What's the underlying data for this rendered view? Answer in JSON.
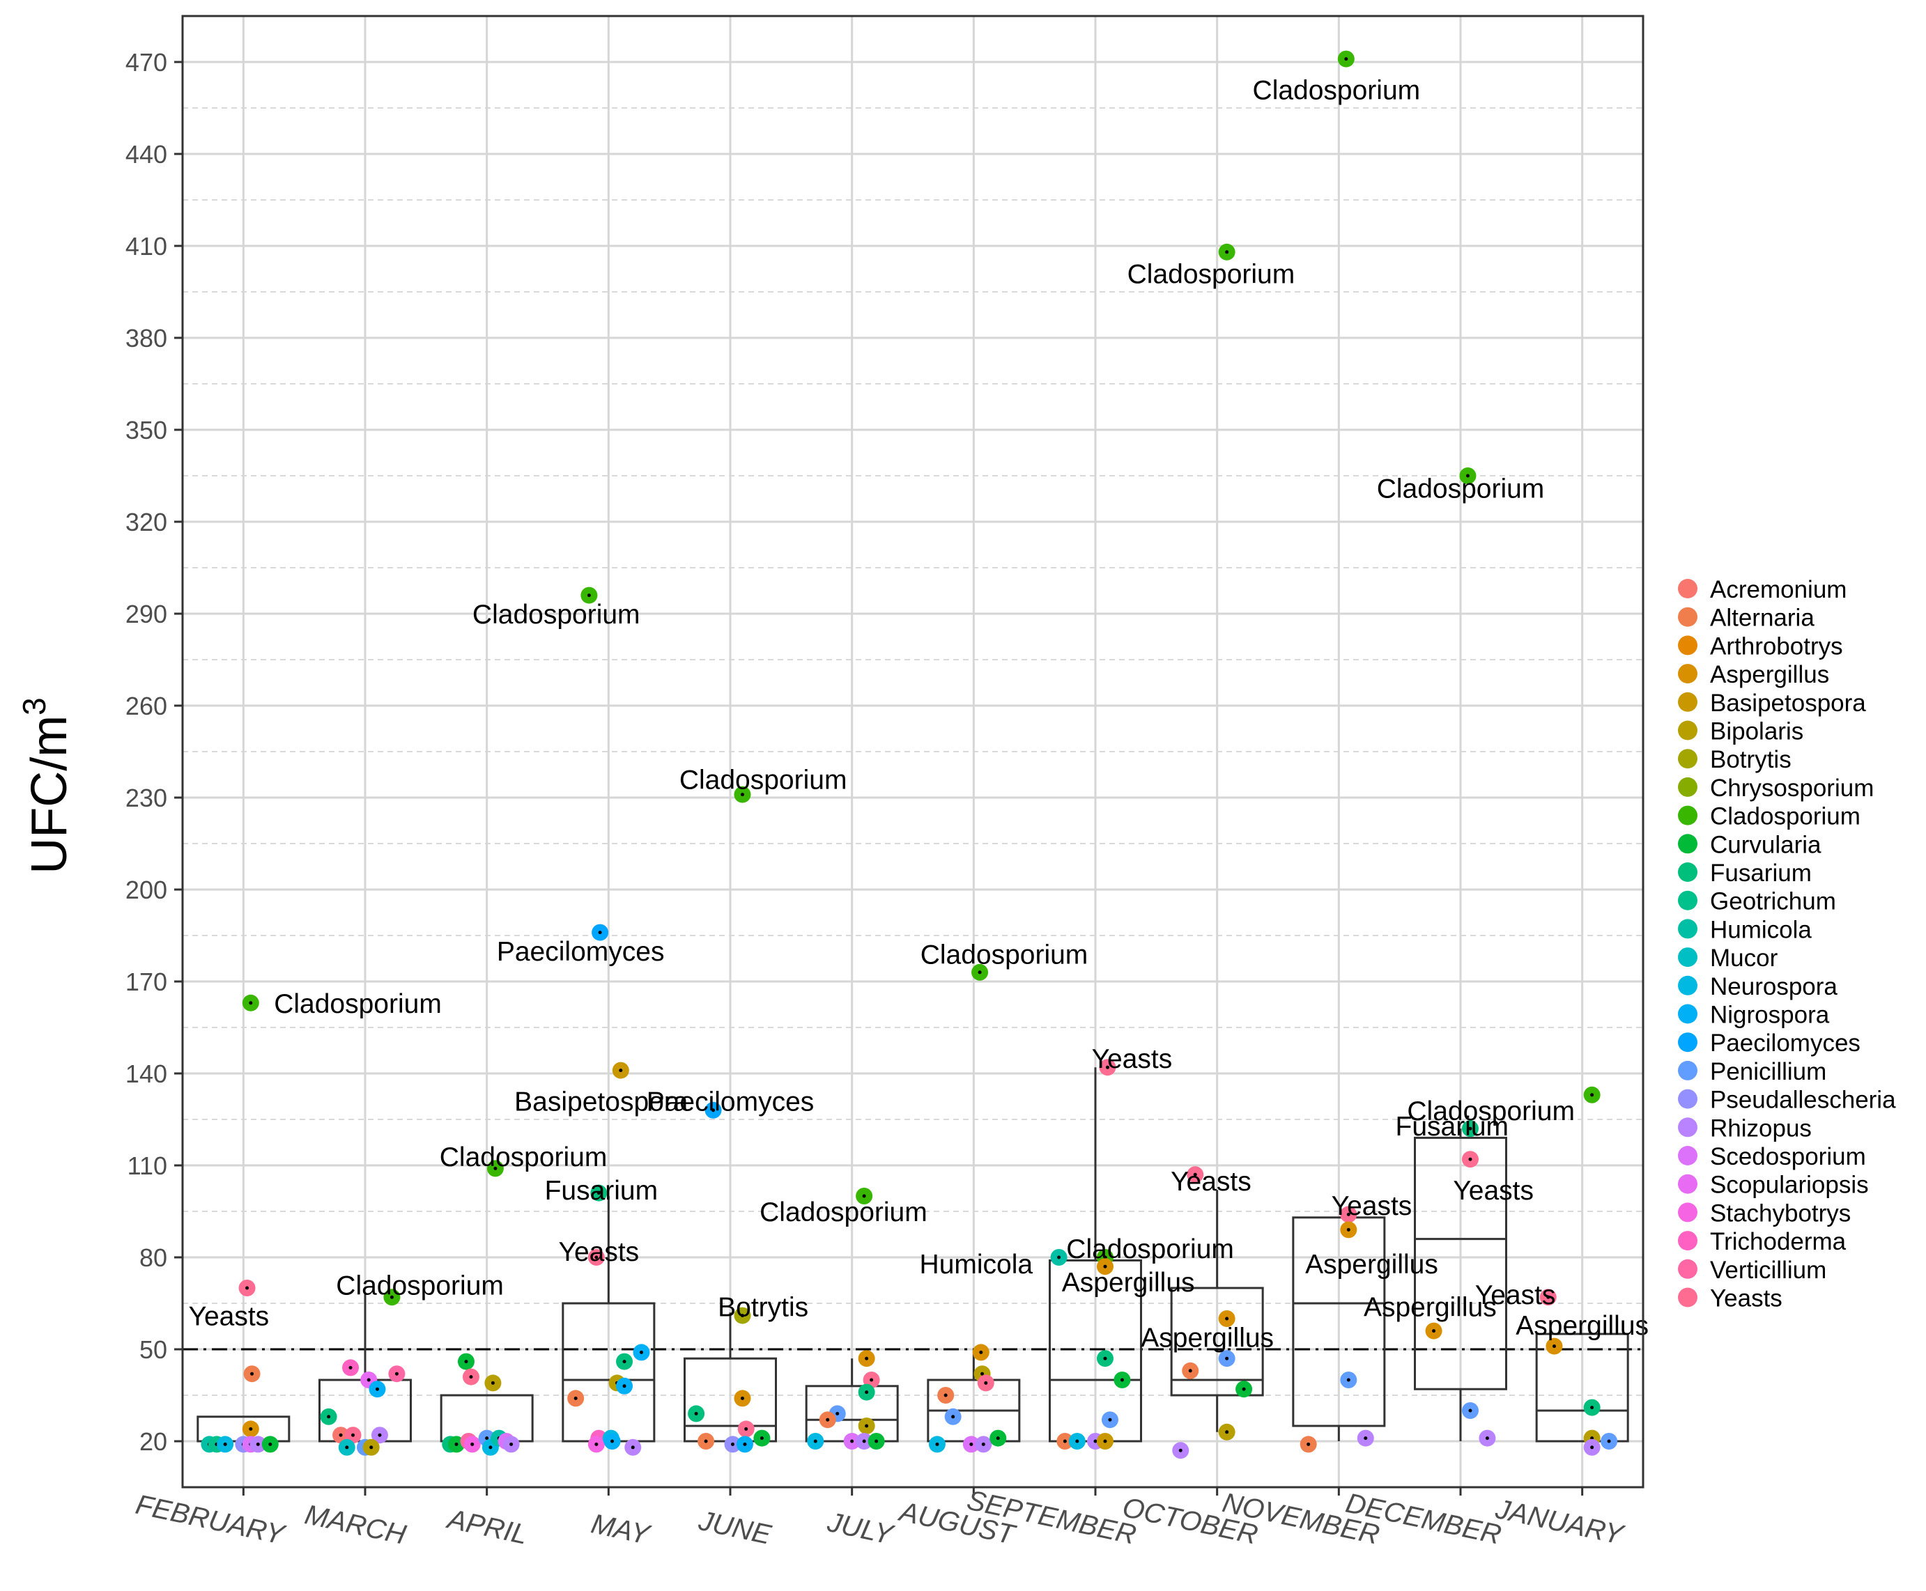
{
  "chart_data": {
    "type": "scatter",
    "title": "",
    "xlabel": "",
    "ylabel": "UFC/m",
    "ylabel_sup": "3",
    "ylim": [
      5,
      485
    ],
    "yticks": [
      20,
      50,
      80,
      110,
      140,
      170,
      200,
      230,
      260,
      290,
      320,
      350,
      380,
      410,
      440,
      470
    ],
    "reference_line": 50,
    "categories": [
      "FEBRUARY",
      "MARCH",
      "APRIL",
      "MAY",
      "JUNE",
      "JULY",
      "AUGUST",
      "SEPTEMBER",
      "OCTOBER",
      "NOVEMBER",
      "DECEMBER",
      "JANUARY"
    ],
    "legend_position": "right",
    "legend": [
      {
        "name": "Acremonium",
        "color": "#F8766D"
      },
      {
        "name": "Alternaria",
        "color": "#F07E4D"
      },
      {
        "name": "Arthrobotrys",
        "color": "#E58700"
      },
      {
        "name": "Aspergillus",
        "color": "#D89000"
      },
      {
        "name": "Basipetospora",
        "color": "#C99800"
      },
      {
        "name": "Bipolaris",
        "color": "#B79F00"
      },
      {
        "name": "Botrytis",
        "color": "#A3A500"
      },
      {
        "name": "Chrysosporium",
        "color": "#86AC00"
      },
      {
        "name": "Cladosporium",
        "color": "#39B600"
      },
      {
        "name": "Curvularia",
        "color": "#00BA38"
      },
      {
        "name": "Fusarium",
        "color": "#00BF7D"
      },
      {
        "name": "Geotrichum",
        "color": "#00C08B"
      },
      {
        "name": "Humicola",
        "color": "#00BFA5"
      },
      {
        "name": "Mucor",
        "color": "#00BFC4"
      },
      {
        "name": "Neurospora",
        "color": "#00B9E3"
      },
      {
        "name": "Nigrospora",
        "color": "#00B0F6"
      },
      {
        "name": "Paecilomyces",
        "color": "#00A5FF"
      },
      {
        "name": "Penicillium",
        "color": "#619CFF"
      },
      {
        "name": "Pseudallescheria",
        "color": "#9590FF"
      },
      {
        "name": "Rhizopus",
        "color": "#B983FF"
      },
      {
        "name": "Scedosporium",
        "color": "#DC71FA"
      },
      {
        "name": "Scopulariopsis",
        "color": "#E76BF3"
      },
      {
        "name": "Stachybotrys",
        "color": "#F564E3"
      },
      {
        "name": "Trichoderma",
        "color": "#FF61C3"
      },
      {
        "name": "Verticillium",
        "color": "#FF67A4"
      },
      {
        "name": "Yeasts",
        "color": "#FF6C91"
      }
    ],
    "boxes": [
      {
        "month": "FEBRUARY",
        "q1": 20,
        "median": 20,
        "q3": 28,
        "whisker_low": 20,
        "whisker_high": 28
      },
      {
        "month": "MARCH",
        "q1": 20,
        "median": 20,
        "q3": 40,
        "whisker_low": 20,
        "whisker_high": 68
      },
      {
        "month": "APRIL",
        "q1": 20,
        "median": 20,
        "q3": 35,
        "whisker_low": 20,
        "whisker_high": 35
      },
      {
        "month": "MAY",
        "q1": 20,
        "median": 40,
        "q3": 65,
        "whisker_low": 20,
        "whisker_high": 100
      },
      {
        "month": "JUNE",
        "q1": 20,
        "median": 25,
        "q3": 47,
        "whisker_low": 20,
        "whisker_high": 62
      },
      {
        "month": "JULY",
        "q1": 20,
        "median": 27,
        "q3": 38,
        "whisker_low": 20,
        "whisker_high": 47
      },
      {
        "month": "AUGUST",
        "q1": 20,
        "median": 30,
        "q3": 40,
        "whisker_low": 20,
        "whisker_high": 50
      },
      {
        "month": "SEPTEMBER",
        "q1": 20,
        "median": 40,
        "q3": 79,
        "whisker_low": 20,
        "whisker_high": 142
      },
      {
        "month": "OCTOBER",
        "q1": 35,
        "median": 40,
        "q3": 70,
        "whisker_low": 23,
        "whisker_high": 102
      },
      {
        "month": "NOVEMBER",
        "q1": 25,
        "median": 65,
        "q3": 93,
        "whisker_low": 20,
        "whisker_high": 93
      },
      {
        "month": "DECEMBER",
        "q1": 37,
        "median": 86,
        "q3": 119,
        "whisker_low": 20,
        "whisker_high": 122
      },
      {
        "month": "JANUARY",
        "q1": 20,
        "median": 30,
        "q3": 55,
        "whisker_low": 20,
        "whisker_high": 55
      }
    ],
    "points": [
      {
        "m": 0,
        "dx": 0.06,
        "y": 163,
        "g": "Cladosporium"
      },
      {
        "m": 0,
        "dx": 0.03,
        "y": 70,
        "g": "Yeasts"
      },
      {
        "m": 0,
        "dx": 0.07,
        "y": 42,
        "g": "Alternaria"
      },
      {
        "m": 0,
        "dx": 0.06,
        "y": 24,
        "g": "Aspergillus"
      },
      {
        "m": 0,
        "dx": -0.28,
        "y": 19,
        "g": "Humicola"
      },
      {
        "m": 0,
        "dx": -0.22,
        "y": 19,
        "g": "Geotrichum"
      },
      {
        "m": 0,
        "dx": -0.15,
        "y": 19,
        "g": "Neurospora"
      },
      {
        "m": 0,
        "dx": 0.0,
        "y": 19,
        "g": "Pseudallescheria"
      },
      {
        "m": 0,
        "dx": 0.06,
        "y": 19,
        "g": "Scedosporium"
      },
      {
        "m": 0,
        "dx": 0.12,
        "y": 19,
        "g": "Rhizopus"
      },
      {
        "m": 0,
        "dx": 0.22,
        "y": 19,
        "g": "Curvularia"
      },
      {
        "m": 1,
        "dx": 0.22,
        "y": 67,
        "g": "Cladosporium"
      },
      {
        "m": 1,
        "dx": -0.12,
        "y": 44,
        "g": "Trichoderma"
      },
      {
        "m": 1,
        "dx": 0.03,
        "y": 40,
        "g": "Scopulariopsis"
      },
      {
        "m": 1,
        "dx": 0.26,
        "y": 42,
        "g": "Verticillium"
      },
      {
        "m": 1,
        "dx": 0.1,
        "y": 37,
        "g": "Nigrospora"
      },
      {
        "m": 1,
        "dx": -0.3,
        "y": 28,
        "g": "Fusarium"
      },
      {
        "m": 1,
        "dx": -0.2,
        "y": 22,
        "g": "Acremonium"
      },
      {
        "m": 1,
        "dx": -0.1,
        "y": 22,
        "g": "Yeasts"
      },
      {
        "m": 1,
        "dx": 0.12,
        "y": 22,
        "g": "Rhizopus"
      },
      {
        "m": 1,
        "dx": -0.15,
        "y": 18,
        "g": "Mucor"
      },
      {
        "m": 1,
        "dx": 0.0,
        "y": 18,
        "g": "Penicillium"
      },
      {
        "m": 1,
        "dx": 0.05,
        "y": 18,
        "g": "Bipolaris"
      },
      {
        "m": 2,
        "dx": 0.07,
        "y": 109,
        "g": "Cladosporium"
      },
      {
        "m": 2,
        "dx": -0.17,
        "y": 46,
        "g": "Curvularia"
      },
      {
        "m": 2,
        "dx": -0.13,
        "y": 41,
        "g": "Yeasts"
      },
      {
        "m": 2,
        "dx": 0.05,
        "y": 39,
        "g": "Bipolaris"
      },
      {
        "m": 2,
        "dx": -0.3,
        "y": 19,
        "g": "Fusarium"
      },
      {
        "m": 2,
        "dx": -0.25,
        "y": 19,
        "g": "Curvularia"
      },
      {
        "m": 2,
        "dx": -0.15,
        "y": 20,
        "g": "Verticillium"
      },
      {
        "m": 2,
        "dx": -0.12,
        "y": 19,
        "g": "Stachybotrys"
      },
      {
        "m": 2,
        "dx": 0.0,
        "y": 21,
        "g": "Penicillium"
      },
      {
        "m": 2,
        "dx": 0.03,
        "y": 18,
        "g": "Neurospora"
      },
      {
        "m": 2,
        "dx": 0.1,
        "y": 21,
        "g": "Humicola"
      },
      {
        "m": 2,
        "dx": 0.16,
        "y": 20,
        "g": "Scedosporium"
      },
      {
        "m": 2,
        "dx": 0.2,
        "y": 19,
        "g": "Rhizopus"
      },
      {
        "m": 3,
        "dx": -0.16,
        "y": 296,
        "g": "Cladosporium"
      },
      {
        "m": 3,
        "dx": -0.07,
        "y": 186,
        "g": "Paecilomyces"
      },
      {
        "m": 3,
        "dx": 0.1,
        "y": 141,
        "g": "Basipetospora"
      },
      {
        "m": 3,
        "dx": -0.08,
        "y": 101,
        "g": "Fusarium"
      },
      {
        "m": 3,
        "dx": -0.1,
        "y": 80,
        "g": "Yeasts"
      },
      {
        "m": 3,
        "dx": 0.27,
        "y": 49,
        "g": "Nigrospora"
      },
      {
        "m": 3,
        "dx": 0.13,
        "y": 46,
        "g": "Fusarium"
      },
      {
        "m": 3,
        "dx": 0.07,
        "y": 39,
        "g": "Bipolaris"
      },
      {
        "m": 3,
        "dx": 0.13,
        "y": 38,
        "g": "Nigrospora"
      },
      {
        "m": 3,
        "dx": -0.27,
        "y": 34,
        "g": "Alternaria"
      },
      {
        "m": 3,
        "dx": -0.08,
        "y": 21,
        "g": "Trichoderma"
      },
      {
        "m": 3,
        "dx": -0.1,
        "y": 19,
        "g": "Stachybotrys"
      },
      {
        "m": 3,
        "dx": 0.02,
        "y": 21,
        "g": "Neurospora"
      },
      {
        "m": 3,
        "dx": 0.03,
        "y": 20,
        "g": "Nigrospora"
      },
      {
        "m": 3,
        "dx": 0.2,
        "y": 18,
        "g": "Rhizopus"
      },
      {
        "m": 4,
        "dx": 0.1,
        "y": 231,
        "g": "Cladosporium"
      },
      {
        "m": 4,
        "dx": -0.14,
        "y": 128,
        "g": "Paecilomyces"
      },
      {
        "m": 4,
        "dx": 0.1,
        "y": 61,
        "g": "Botrytis"
      },
      {
        "m": 4,
        "dx": 0.1,
        "y": 34,
        "g": "Aspergillus"
      },
      {
        "m": 4,
        "dx": -0.28,
        "y": 29,
        "g": "Fusarium"
      },
      {
        "m": 4,
        "dx": 0.13,
        "y": 24,
        "g": "Yeasts"
      },
      {
        "m": 4,
        "dx": -0.2,
        "y": 20,
        "g": "Alternaria"
      },
      {
        "m": 4,
        "dx": 0.02,
        "y": 19,
        "g": "Pseudallescheria"
      },
      {
        "m": 4,
        "dx": 0.12,
        "y": 19,
        "g": "Nigrospora"
      },
      {
        "m": 4,
        "dx": 0.26,
        "y": 21,
        "g": "Curvularia"
      },
      {
        "m": 5,
        "dx": 0.1,
        "y": 100,
        "g": "Cladosporium"
      },
      {
        "m": 5,
        "dx": 0.12,
        "y": 47,
        "g": "Aspergillus"
      },
      {
        "m": 5,
        "dx": 0.16,
        "y": 40,
        "g": "Yeasts"
      },
      {
        "m": 5,
        "dx": 0.12,
        "y": 36,
        "g": "Fusarium"
      },
      {
        "m": 5,
        "dx": -0.12,
        "y": 29,
        "g": "Penicillium"
      },
      {
        "m": 5,
        "dx": -0.2,
        "y": 27,
        "g": "Alternaria"
      },
      {
        "m": 5,
        "dx": 0.12,
        "y": 25,
        "g": "Bipolaris"
      },
      {
        "m": 5,
        "dx": -0.3,
        "y": 20,
        "g": "Neurospora"
      },
      {
        "m": 5,
        "dx": 0.0,
        "y": 20,
        "g": "Scedosporium"
      },
      {
        "m": 5,
        "dx": 0.1,
        "y": 20,
        "g": "Rhizopus"
      },
      {
        "m": 5,
        "dx": 0.2,
        "y": 20,
        "g": "Curvularia"
      },
      {
        "m": 6,
        "dx": 0.05,
        "y": 173,
        "g": "Cladosporium"
      },
      {
        "m": 6,
        "dx": 0.06,
        "y": 49,
        "g": "Aspergillus"
      },
      {
        "m": 6,
        "dx": 0.07,
        "y": 42,
        "g": "Bipolaris"
      },
      {
        "m": 6,
        "dx": 0.1,
        "y": 39,
        "g": "Yeasts"
      },
      {
        "m": 6,
        "dx": -0.23,
        "y": 35,
        "g": "Alternaria"
      },
      {
        "m": 6,
        "dx": -0.17,
        "y": 28,
        "g": "Penicillium"
      },
      {
        "m": 6,
        "dx": -0.3,
        "y": 19,
        "g": "Neurospora"
      },
      {
        "m": 6,
        "dx": -0.02,
        "y": 19,
        "g": "Scedosporium"
      },
      {
        "m": 6,
        "dx": 0.08,
        "y": 19,
        "g": "Rhizopus"
      },
      {
        "m": 6,
        "dx": 0.2,
        "y": 21,
        "g": "Curvularia"
      },
      {
        "m": 7,
        "dx": 0.1,
        "y": 142,
        "g": "Yeasts"
      },
      {
        "m": 7,
        "dx": -0.3,
        "y": 80,
        "g": "Humicola"
      },
      {
        "m": 7,
        "dx": 0.08,
        "y": 80,
        "g": "Cladosporium"
      },
      {
        "m": 7,
        "dx": 0.08,
        "y": 77,
        "g": "Aspergillus"
      },
      {
        "m": 7,
        "dx": 0.08,
        "y": 47,
        "g": "Fusarium"
      },
      {
        "m": 7,
        "dx": 0.22,
        "y": 40,
        "g": "Curvularia"
      },
      {
        "m": 7,
        "dx": 0.12,
        "y": 27,
        "g": "Penicillium"
      },
      {
        "m": 7,
        "dx": -0.25,
        "y": 20,
        "g": "Alternaria"
      },
      {
        "m": 7,
        "dx": -0.15,
        "y": 20,
        "g": "Neurospora"
      },
      {
        "m": 7,
        "dx": 0.0,
        "y": 20,
        "g": "Rhizopus"
      },
      {
        "m": 7,
        "dx": 0.08,
        "y": 20,
        "g": "Basipetospora"
      },
      {
        "m": 8,
        "dx": 0.08,
        "y": 408,
        "g": "Cladosporium"
      },
      {
        "m": 8,
        "dx": -0.18,
        "y": 107,
        "g": "Yeasts"
      },
      {
        "m": 8,
        "dx": 0.08,
        "y": 60,
        "g": "Aspergillus"
      },
      {
        "m": 8,
        "dx": 0.08,
        "y": 47,
        "g": "Penicillium"
      },
      {
        "m": 8,
        "dx": -0.22,
        "y": 43,
        "g": "Alternaria"
      },
      {
        "m": 8,
        "dx": 0.22,
        "y": 37,
        "g": "Curvularia"
      },
      {
        "m": 8,
        "dx": 0.08,
        "y": 23,
        "g": "Bipolaris"
      },
      {
        "m": 8,
        "dx": -0.3,
        "y": 17,
        "g": "Rhizopus"
      },
      {
        "m": 9,
        "dx": 0.06,
        "y": 471,
        "g": "Cladosporium"
      },
      {
        "m": 9,
        "dx": 0.08,
        "y": 94,
        "g": "Yeasts"
      },
      {
        "m": 9,
        "dx": 0.08,
        "y": 89,
        "g": "Aspergillus"
      },
      {
        "m": 9,
        "dx": 0.08,
        "y": 40,
        "g": "Penicillium"
      },
      {
        "m": 9,
        "dx": -0.25,
        "y": 19,
        "g": "Alternaria"
      },
      {
        "m": 9,
        "dx": 0.22,
        "y": 21,
        "g": "Rhizopus"
      },
      {
        "m": 10,
        "dx": 0.06,
        "y": 335,
        "g": "Cladosporium"
      },
      {
        "m": 10,
        "dx": 0.08,
        "y": 122,
        "g": "Fusarium"
      },
      {
        "m": 10,
        "dx": 0.08,
        "y": 112,
        "g": "Yeasts"
      },
      {
        "m": 10,
        "dx": -0.22,
        "y": 56,
        "g": "Aspergillus"
      },
      {
        "m": 10,
        "dx": 0.08,
        "y": 30,
        "g": "Penicillium"
      },
      {
        "m": 10,
        "dx": 0.22,
        "y": 21,
        "g": "Rhizopus"
      },
      {
        "m": 11,
        "dx": 0.08,
        "y": 133,
        "g": "Cladosporium"
      },
      {
        "m": 11,
        "dx": -0.28,
        "y": 67,
        "g": "Yeasts"
      },
      {
        "m": 11,
        "dx": -0.23,
        "y": 51,
        "g": "Aspergillus"
      },
      {
        "m": 11,
        "dx": 0.08,
        "y": 31,
        "g": "Fusarium"
      },
      {
        "m": 11,
        "dx": 0.08,
        "y": 21,
        "g": "Bipolaris"
      },
      {
        "m": 11,
        "dx": 0.08,
        "y": 18,
        "g": "Rhizopus"
      },
      {
        "m": 11,
        "dx": 0.22,
        "y": 20,
        "g": "Penicillium"
      }
    ],
    "annotations": [
      {
        "m": 0,
        "dx": 0.94,
        "y": 163,
        "text": "Cladosporium"
      },
      {
        "m": 0,
        "dx": -0.12,
        "y": 61,
        "text": "Yeasts"
      },
      {
        "m": 1,
        "dx": 0.45,
        "y": 71,
        "text": "Cladosporium"
      },
      {
        "m": 2,
        "dx": 0.3,
        "y": 113,
        "text": "Cladosporium"
      },
      {
        "m": 3,
        "dx": -0.43,
        "y": 290,
        "text": "Cladosporium"
      },
      {
        "m": 3,
        "dx": -0.23,
        "y": 180,
        "text": "Paecilomyces"
      },
      {
        "m": 3,
        "dx": -0.06,
        "y": 131,
        "text": "Basipetospora"
      },
      {
        "m": 3,
        "dx": -0.06,
        "y": 102,
        "text": "Fusarium"
      },
      {
        "m": 3,
        "dx": -0.08,
        "y": 82,
        "text": "Yeasts"
      },
      {
        "m": 4,
        "dx": 0.27,
        "y": 236,
        "text": "Cladosporium"
      },
      {
        "m": 4,
        "dx": 0.0,
        "y": 131,
        "text": "Paecilomyces"
      },
      {
        "m": 4,
        "dx": 0.27,
        "y": 64,
        "text": "Botrytis"
      },
      {
        "m": 5,
        "dx": -0.07,
        "y": 95,
        "text": "Cladosporium"
      },
      {
        "m": 6,
        "dx": 0.25,
        "y": 179,
        "text": "Cladosporium"
      },
      {
        "m": 6,
        "dx": 0.02,
        "y": 78,
        "text": "Humicola"
      },
      {
        "m": 7,
        "dx": 0.3,
        "y": 145,
        "text": "Yeasts"
      },
      {
        "m": 7,
        "dx": 0.45,
        "y": 83,
        "text": "Cladosporium"
      },
      {
        "m": 7,
        "dx": 0.27,
        "y": 72,
        "text": "Aspergillus"
      },
      {
        "m": 8,
        "dx": -0.05,
        "y": 401,
        "text": "Cladosporium"
      },
      {
        "m": 8,
        "dx": -0.05,
        "y": 105,
        "text": "Yeasts"
      },
      {
        "m": 8,
        "dx": -0.08,
        "y": 54,
        "text": "Aspergillus"
      },
      {
        "m": 9,
        "dx": -0.02,
        "y": 461,
        "text": "Cladosporium"
      },
      {
        "m": 9,
        "dx": 0.27,
        "y": 78,
        "text": "Aspergillus"
      },
      {
        "m": 9,
        "dx": 0.27,
        "y": 97,
        "text": "Yeasts"
      },
      {
        "m": 10,
        "dx": 0.0,
        "y": 331,
        "text": "Cladosporium"
      },
      {
        "m": 10,
        "dx": 0.25,
        "y": 128,
        "text": "Cladosporium"
      },
      {
        "m": 10,
        "dx": -0.07,
        "y": 123,
        "text": "Fusarium"
      },
      {
        "m": 10,
        "dx": 0.27,
        "y": 102,
        "text": "Yeasts"
      },
      {
        "m": 10,
        "dx": -0.25,
        "y": 64,
        "text": "Aspergillus"
      },
      {
        "m": 11,
        "dx": -0.55,
        "y": 68,
        "text": "Yeasts"
      },
      {
        "m": 11,
        "dx": 0.0,
        "y": 58,
        "text": "Aspergillus"
      }
    ]
  }
}
